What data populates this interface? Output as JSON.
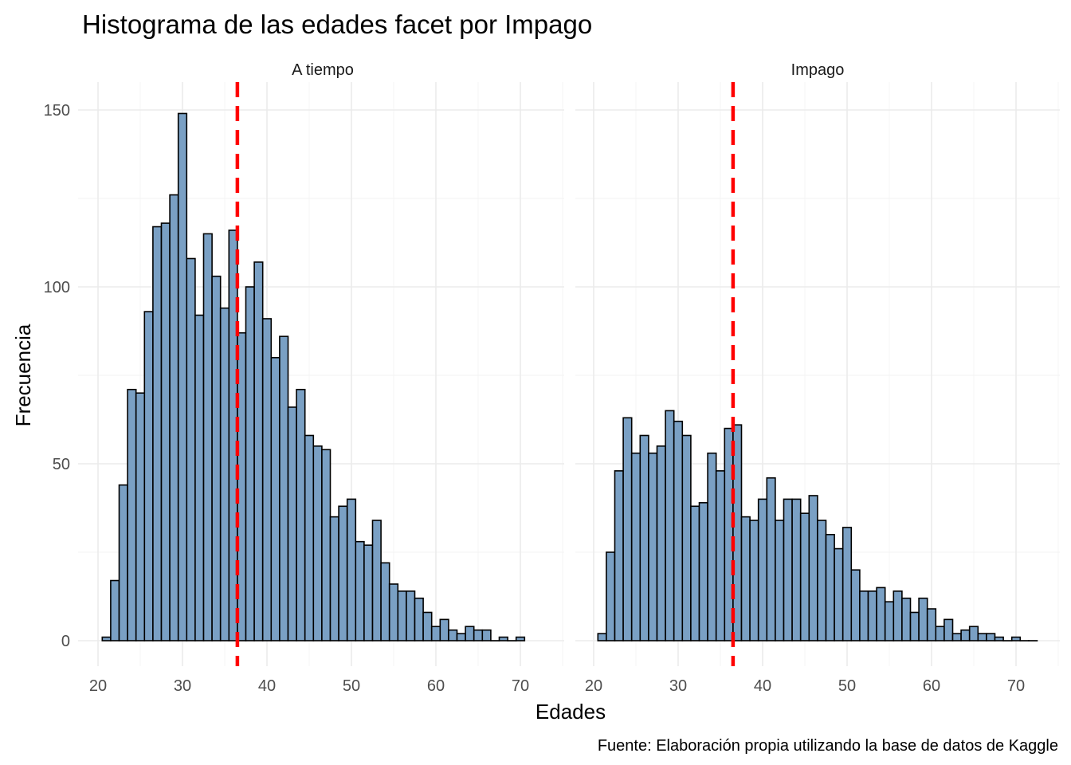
{
  "chart_data": {
    "type": "bar",
    "title": "Histograma de las edades facet por Impago",
    "xlabel": "Edades",
    "ylabel": "Frecuencia",
    "caption": "Fuente: Elaboración propia utilizando la base de datos de Kaggle",
    "xlim": [
      20,
      72.5
    ],
    "ylim": [
      0,
      155
    ],
    "x_ticks": [
      "20",
      "30",
      "40",
      "50",
      "60",
      "70"
    ],
    "y_ticks": [
      "0",
      "50",
      "100",
      "150"
    ],
    "bar_fill": "#7aa0c4",
    "bar_outline": "#000000",
    "mean_line_color": "#ff0000",
    "grid": true,
    "bins": {
      "x_start": 20.5,
      "width": 1.0
    },
    "mean_line_style": "dashed",
    "panels": [
      {
        "label": "A tiempo",
        "mean_age": 36.5,
        "values": [
          1,
          17,
          44,
          71,
          70,
          93,
          117,
          118,
          126,
          149,
          108,
          92,
          115,
          103,
          94,
          116,
          87,
          100,
          107,
          91,
          80,
          86,
          66,
          71,
          58,
          55,
          54,
          35,
          38,
          40,
          28,
          27,
          34,
          22,
          16,
          14,
          14,
          12,
          8,
          4,
          6,
          3,
          2,
          4,
          3,
          3,
          0,
          1,
          0,
          1
        ]
      },
      {
        "label": "Impago",
        "mean_age": 36.5,
        "values": [
          2,
          25,
          48,
          63,
          53,
          58,
          53,
          55,
          65,
          62,
          58,
          38,
          39,
          53,
          48,
          60,
          61,
          35,
          34,
          40,
          46,
          34,
          40,
          40,
          36,
          41,
          34,
          30,
          26,
          32,
          20,
          14,
          14,
          15,
          11,
          14,
          12,
          8,
          12,
          9,
          4,
          6,
          2,
          3,
          4,
          2,
          2,
          1,
          0,
          1,
          0,
          0
        ]
      }
    ]
  }
}
